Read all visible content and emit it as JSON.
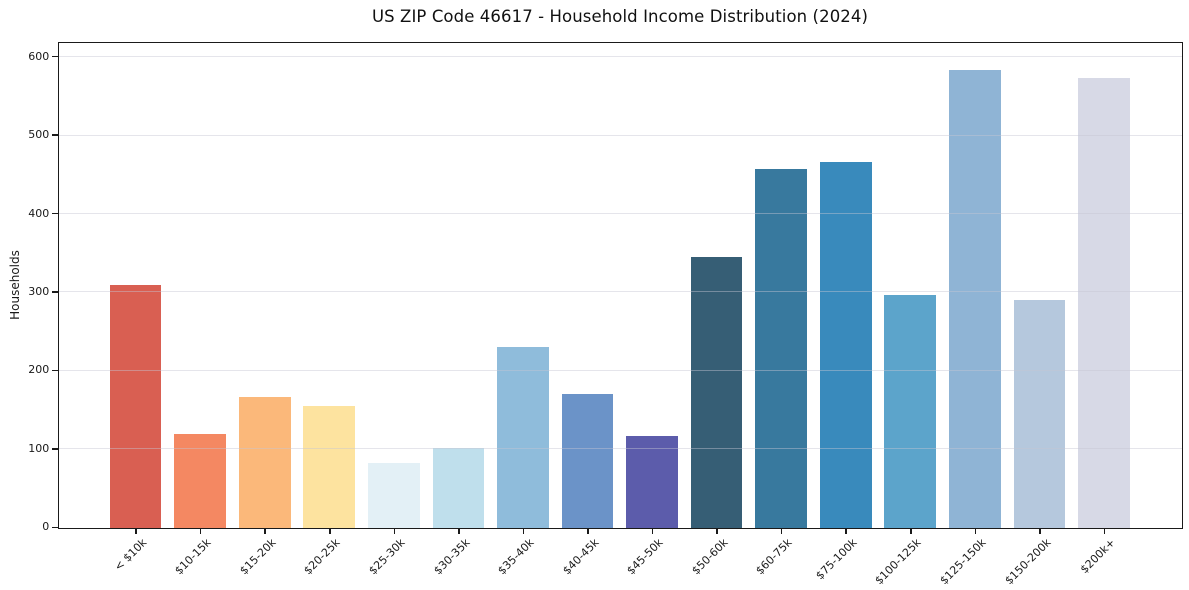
{
  "title": "US ZIP Code 46617 - Household Income Distribution (2024)",
  "chart_data": {
    "type": "bar",
    "title": "US ZIP Code 46617 - Household Income Distribution (2024)",
    "xlabel": "",
    "ylabel": "Households",
    "categories": [
      "< $10k",
      "$10-15k",
      "$15-20k",
      "$20-25k",
      "$25-30k",
      "$30-35k",
      "$35-40k",
      "$40-45k",
      "$45-50k",
      "$50-60k",
      "$60-75k",
      "$75-100k",
      "$100-125k",
      "$125-150k",
      "$150-200k",
      "$200k+"
    ],
    "values": [
      310,
      119,
      167,
      155,
      83,
      102,
      231,
      171,
      117,
      345,
      458,
      466,
      297,
      583,
      291,
      574
    ],
    "bar_colors": [
      "#d95f52",
      "#f48862",
      "#fbb87a",
      "#fde39f",
      "#e3f0f6",
      "#bfdfec",
      "#8fbcdb",
      "#6b93c8",
      "#5c5cab",
      "#365e75",
      "#38799e",
      "#398abc",
      "#5ca4cb",
      "#8fb4d5",
      "#b5c8dd",
      "#d7d9e6"
    ],
    "yticks": [
      0,
      100,
      200,
      300,
      400,
      500,
      600
    ],
    "ylim": [
      0,
      617
    ],
    "grid": "horizontal",
    "legend": "none"
  },
  "colors": {
    "background": "#ffffff",
    "grid": "#e9e9ef",
    "spine": "#1a1a1a",
    "text": "#1a1a1a"
  }
}
